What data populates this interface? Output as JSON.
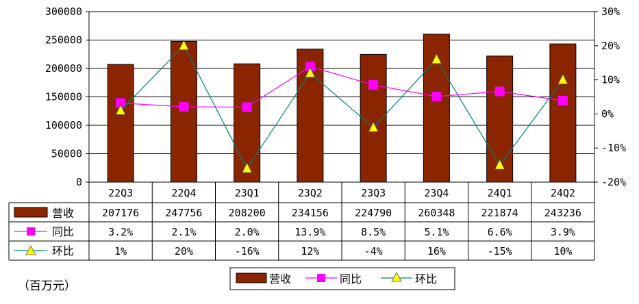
{
  "chart_data": {
    "type": "bar",
    "categories": [
      "22Q3",
      "22Q4",
      "23Q1",
      "23Q2",
      "23Q3",
      "23Q4",
      "24Q1",
      "24Q2"
    ],
    "series": [
      {
        "name": "营收",
        "kind": "bar",
        "axis": "left",
        "color": "#8B2500",
        "values": [
          207176,
          247756,
          208200,
          234156,
          224790,
          260348,
          221874,
          243236
        ]
      },
      {
        "name": "同比",
        "kind": "line",
        "axis": "right",
        "color": "#FF00FF",
        "marker": "square",
        "values": [
          3.2,
          2.1,
          2.0,
          13.9,
          8.5,
          5.1,
          6.6,
          3.9
        ],
        "labels": [
          "3.2%",
          "2.1%",
          "2.0%",
          "13.9%",
          "8.5%",
          "5.1%",
          "6.6%",
          "3.9%"
        ]
      },
      {
        "name": "环比",
        "kind": "line",
        "axis": "right",
        "color": "#008080",
        "marker": "triangle",
        "marker_fill": "#FFFF00",
        "values": [
          1,
          20,
          -16,
          12,
          -4,
          16,
          -15,
          10
        ],
        "labels": [
          "1%",
          "20%",
          "-16%",
          "12%",
          "-4%",
          "16%",
          "-15%",
          "10%"
        ]
      }
    ],
    "left_axis": {
      "ticks": [
        "0",
        "50000",
        "100000",
        "150000",
        "200000",
        "250000",
        "300000"
      ],
      "ylim": [
        0,
        300000
      ]
    },
    "right_axis": {
      "ticks": [
        "-20%",
        "-10%",
        "0%",
        "10%",
        "20%",
        "30%"
      ],
      "ylim": [
        -20,
        30
      ]
    },
    "unit_label": "（百万元）",
    "legend": [
      "营收",
      "同比",
      "环比"
    ],
    "grid": true,
    "legend_position": "bottom"
  }
}
